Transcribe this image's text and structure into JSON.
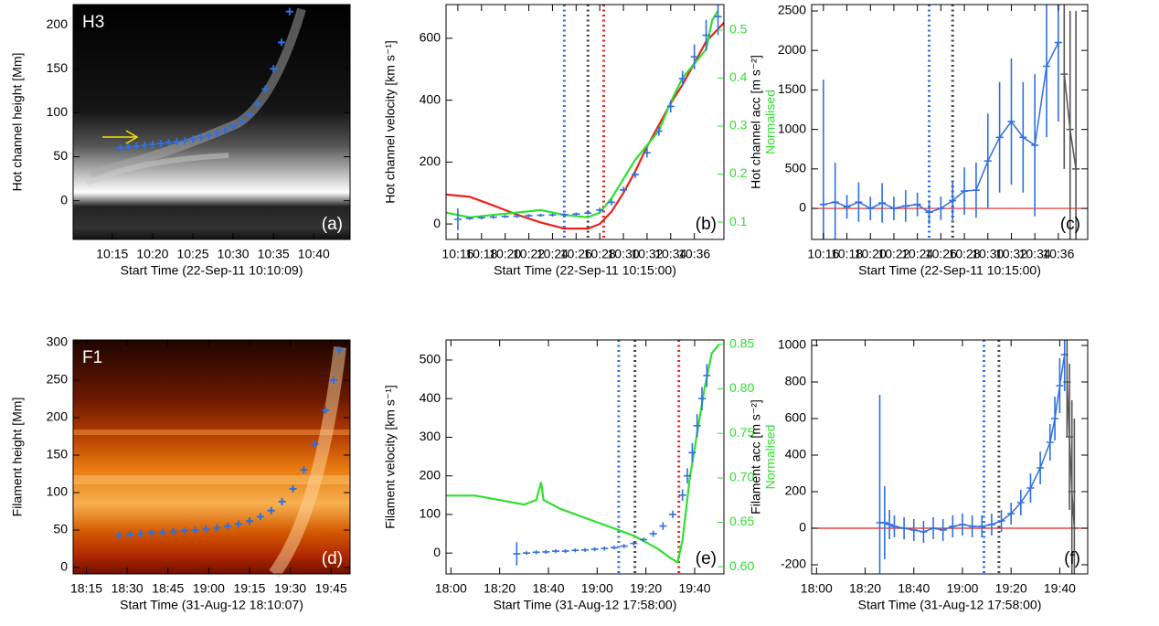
{
  "chart_data": [
    {
      "type": "scatter",
      "title": "H3",
      "panel": "(a)",
      "ylabel": "Hot channel height [Mm]",
      "xlabel": "Start Time (22-Sep-11 10:10:09)",
      "xlim": [
        "10:10:09",
        "10:44:30"
      ],
      "ylim": [
        -44,
        223
      ],
      "xticks": [
        "10:15",
        "10:20",
        "10:25",
        "10:30",
        "10:35",
        "10:40"
      ],
      "yticks": [
        0,
        50,
        100,
        150,
        200
      ],
      "series": [
        {
          "color": "#2f6fe0",
          "style": "cross",
          "x": [
            "10:16",
            "10:17",
            "10:18",
            "10:19",
            "10:20",
            "10:21",
            "10:22",
            "10:23",
            "10:24",
            "10:25",
            "10:26",
            "10:27",
            "10:28",
            "10:29",
            "10:30",
            "10:31",
            "10:32",
            "10:33",
            "10:34",
            "10:35",
            "10:36",
            "10:37"
          ],
          "values": [
            60,
            61,
            62,
            63,
            64,
            65,
            66,
            67,
            68,
            70,
            72,
            74,
            77,
            80,
            84,
            90,
            98,
            110,
            127,
            150,
            180,
            215
          ]
        }
      ]
    },
    {
      "type": "line",
      "panel": "(b)",
      "ylabel": "Hot channel velocity [km s⁻¹]",
      "y2label": "Normalised",
      "y2color": "#2ee02e",
      "xlabel": "Start Time (22-Sep-11 10:15:00)",
      "xlim": [
        "10:15:00",
        "10:38:30"
      ],
      "ylim": [
        -50,
        709
      ],
      "y2lim": [
        0.064,
        0.553
      ],
      "xticks": [
        "10:16",
        "10:18",
        "10:20",
        "10:22",
        "10:24",
        "10:26",
        "10:28",
        "10:30",
        "10:32",
        "10:34",
        "10:36"
      ],
      "yticks": [
        0,
        200,
        400,
        600
      ],
      "y2ticks": [
        0.1,
        0.2,
        0.3,
        0.4,
        0.5
      ],
      "vlines": [
        {
          "x": "10:25:00",
          "color": "#2f6fe0"
        },
        {
          "x": "10:27:00",
          "color": "#444444"
        },
        {
          "x": "10:28:20",
          "color": "#e8231b"
        }
      ],
      "series": [
        {
          "color": "#e8231b",
          "style": "line",
          "x": [
            "10:15",
            "10:17",
            "10:19",
            "10:21",
            "10:23",
            "10:25",
            "10:27",
            "10:28",
            "10:29",
            "10:30",
            "10:31",
            "10:32",
            "10:33",
            "10:34",
            "10:35",
            "10:36",
            "10:37",
            "10:38:30"
          ],
          "values": [
            95,
            88,
            60,
            30,
            5,
            -15,
            -15,
            0,
            40,
            100,
            170,
            250,
            320,
            390,
            450,
            520,
            590,
            650
          ]
        },
        {
          "color": "#2ee02e",
          "style": "line",
          "axis": "y2",
          "x": [
            "10:15",
            "10:17",
            "10:19",
            "10:21",
            "10:23",
            "10:25",
            "10:27",
            "10:28",
            "10:29",
            "10:30",
            "10:31",
            "10:32",
            "10:33",
            "10:34",
            "10:35",
            "10:36",
            "10:37",
            "10:37:30",
            "10:38"
          ],
          "values": [
            0.12,
            0.11,
            0.115,
            0.12,
            0.125,
            0.115,
            0.11,
            0.12,
            0.15,
            0.19,
            0.23,
            0.26,
            0.29,
            0.35,
            0.4,
            0.43,
            0.46,
            0.52,
            0.54
          ]
        },
        {
          "color": "#2f6fe0",
          "style": "errorbar",
          "x": [
            "10:16",
            "10:17",
            "10:18",
            "10:19",
            "10:20",
            "10:21",
            "10:22",
            "10:23",
            "10:24",
            "10:25",
            "10:26",
            "10:27",
            "10:28",
            "10:29",
            "10:30",
            "10:31",
            "10:32",
            "10:33",
            "10:34",
            "10:35",
            "10:36",
            "10:37",
            "10:38"
          ],
          "values": [
            15,
            18,
            20,
            22,
            24,
            25,
            27,
            28,
            29,
            30,
            32,
            35,
            45,
            70,
            110,
            160,
            230,
            300,
            380,
            470,
            540,
            610,
            670
          ],
          "errors": [
            35,
            5,
            5,
            5,
            5,
            5,
            5,
            5,
            5,
            5,
            5,
            5,
            8,
            10,
            10,
            12,
            15,
            15,
            20,
            25,
            40,
            50,
            60
          ]
        }
      ]
    },
    {
      "type": "line",
      "panel": "(c)",
      "ylabel": "Hot channel acc [m s⁻²]",
      "xlabel": "Start Time (22-Sep-11 10:15:00)",
      "xlim": [
        "10:15:00",
        "10:38:30"
      ],
      "ylim": [
        -393,
        2581
      ],
      "xticks": [
        "10:16",
        "10:18",
        "10:20",
        "10:22",
        "10:24",
        "10:26",
        "10:28",
        "10:30",
        "10:32",
        "10:34",
        "10:36"
      ],
      "yticks": [
        0,
        500,
        1000,
        1500,
        2000,
        2500
      ],
      "hline": {
        "value": 0,
        "color": "#e8231b"
      },
      "vlines": [
        {
          "x": "10:25:00",
          "color": "#2f6fe0"
        },
        {
          "x": "10:27:00",
          "color": "#444444"
        }
      ],
      "series": [
        {
          "color": "#2f6fe0",
          "style": "line+errorbar",
          "x": [
            "10:16",
            "10:17",
            "10:18",
            "10:19",
            "10:20",
            "10:21",
            "10:22",
            "10:23",
            "10:24",
            "10:25",
            "10:26",
            "10:27",
            "10:28",
            "10:29",
            "10:30",
            "10:31",
            "10:32",
            "10:33",
            "10:34",
            "10:35",
            "10:36"
          ],
          "values": [
            50,
            80,
            20,
            80,
            0,
            70,
            0,
            30,
            50,
            -50,
            0,
            100,
            220,
            230,
            600,
            900,
            1100,
            900,
            800,
            1800,
            2100
          ],
          "errors": [
            1580,
            500,
            150,
            250,
            150,
            250,
            150,
            200,
            150,
            150,
            150,
            250,
            300,
            350,
            600,
            700,
            800,
            700,
            900,
            900,
            1000
          ]
        },
        {
          "color": "#555555",
          "style": "line+errorbar",
          "x": [
            "10:36:30",
            "10:37",
            "10:37:30"
          ],
          "values": [
            1700,
            1000,
            500
          ],
          "errors": [
            1200,
            1500,
            2000
          ]
        }
      ]
    },
    {
      "type": "scatter",
      "title": "F1",
      "panel": "(d)",
      "ylabel": "Filament height [Mm]",
      "xlabel": "Start Time (31-Aug-12 18:10:07)",
      "xlim": [
        "18:10:07",
        "19:52:00"
      ],
      "ylim": [
        -8.5,
        303.7
      ],
      "xticks": [
        "18:15",
        "18:30",
        "18:45",
        "19:00",
        "19:15",
        "19:30",
        "19:45"
      ],
      "yticks": [
        0,
        50,
        100,
        150,
        200,
        250,
        300
      ],
      "series": [
        {
          "color": "#2f6fe0",
          "style": "cross",
          "x": [
            "18:27",
            "18:31",
            "18:35",
            "18:39",
            "18:43",
            "18:47",
            "18:51",
            "18:55",
            "18:59",
            "19:03",
            "19:07",
            "19:11",
            "19:15",
            "19:19",
            "19:23",
            "19:27",
            "19:31",
            "19:35",
            "19:39",
            "19:43",
            "19:46",
            "19:48"
          ],
          "values": [
            43,
            44,
            45,
            46,
            47,
            48,
            49,
            50,
            51,
            53,
            55,
            58,
            62,
            68,
            76,
            88,
            105,
            130,
            165,
            210,
            250,
            290
          ]
        }
      ]
    },
    {
      "type": "line",
      "panel": "(e)",
      "ylabel": "Filament velocity [km s⁻¹]",
      "y2label": "Normalised",
      "y2color": "#2ee02e",
      "xlabel": "Start Time (31-Aug-12 17:58:00)",
      "xlim": [
        "17:58:00",
        "19:52:00"
      ],
      "ylim": [
        -54,
        552
      ],
      "y2lim": [
        0.592,
        0.855
      ],
      "xticks": [
        "18:00",
        "18:20",
        "18:40",
        "19:00",
        "19:20",
        "19:40"
      ],
      "yticks": [
        0,
        100,
        200,
        300,
        400,
        500
      ],
      "y2ticks": [
        {
          "value": 0.6,
          "label": "0.60"
        },
        0.65,
        {
          "value": 0.7,
          "label": "0.70"
        },
        0.75,
        {
          "value": 0.8,
          "label": "0.80"
        },
        0.85
      ],
      "vlines": [
        {
          "x": "19:08:50",
          "color": "#2f6fe0"
        },
        {
          "x": "19:15:30",
          "color": "#444444"
        },
        {
          "x": "19:33:30",
          "color": "#e8231b"
        }
      ],
      "series": [
        {
          "color": "#2ee02e",
          "style": "line",
          "axis": "y2",
          "x": [
            "17:58",
            "18:10",
            "18:20",
            "18:30",
            "18:35",
            "18:37",
            "18:38",
            "18:45",
            "18:55",
            "19:05",
            "19:15",
            "19:25",
            "19:30",
            "19:33",
            "19:35",
            "19:38",
            "19:41",
            "19:44",
            "19:47",
            "19:50"
          ],
          "values": [
            0.68,
            0.68,
            0.675,
            0.67,
            0.675,
            0.695,
            0.675,
            0.665,
            0.655,
            0.645,
            0.635,
            0.62,
            0.61,
            0.605,
            0.63,
            0.7,
            0.75,
            0.8,
            0.84,
            0.85
          ]
        },
        {
          "color": "#2f6fe0",
          "style": "errorbar",
          "x": [
            "18:27",
            "18:31",
            "18:35",
            "18:39",
            "18:43",
            "18:47",
            "18:51",
            "18:55",
            "18:59",
            "19:03",
            "19:07",
            "19:11",
            "19:15",
            "19:19",
            "19:23",
            "19:27",
            "19:31",
            "19:35",
            "19:37",
            "19:39",
            "19:41",
            "19:43",
            "19:45"
          ],
          "values": [
            -2,
            0,
            2,
            3,
            5,
            5,
            7,
            8,
            10,
            12,
            14,
            18,
            25,
            35,
            50,
            70,
            100,
            150,
            200,
            260,
            330,
            400,
            460
          ],
          "errors": [
            30,
            5,
            5,
            5,
            5,
            5,
            5,
            5,
            5,
            5,
            5,
            5,
            5,
            5,
            8,
            10,
            10,
            15,
            20,
            25,
            30,
            30,
            30
          ]
        }
      ]
    },
    {
      "type": "line",
      "panel": "(f)",
      "ylabel": "Filament acc [m s⁻²]",
      "xlabel": "Start Time (31-Aug-12 17:58:00)",
      "xlim": [
        "17:58:00",
        "19:51:30"
      ],
      "ylim": [
        -250,
        1030
      ],
      "xticks": [
        "18:00",
        "18:20",
        "18:40",
        "19:00",
        "19:20",
        "19:40"
      ],
      "yticks": [
        -200,
        0,
        200,
        400,
        600,
        800,
        1000
      ],
      "hline": {
        "value": 0,
        "color": "#e8231b"
      },
      "vlines": [
        {
          "x": "19:08:50",
          "color": "#2f6fe0"
        },
        {
          "x": "19:15:00",
          "color": "#444444"
        }
      ],
      "series": [
        {
          "color": "#2f6fe0",
          "style": "line+errorbar",
          "x": [
            "18:26",
            "18:28",
            "18:30",
            "18:32",
            "18:36",
            "18:40",
            "18:44",
            "18:48",
            "18:52",
            "18:56",
            "19:00",
            "19:04",
            "19:08",
            "19:12",
            "19:16",
            "19:20",
            "19:24",
            "19:28",
            "19:32",
            "19:36",
            "19:38",
            "19:40",
            "19:42"
          ],
          "values": [
            30,
            30,
            20,
            10,
            0,
            -10,
            -20,
            0,
            -10,
            10,
            20,
            10,
            10,
            20,
            40,
            80,
            140,
            220,
            330,
            470,
            600,
            780,
            950
          ],
          "errors": [
            700,
            200,
            80,
            60,
            60,
            60,
            60,
            60,
            60,
            60,
            60,
            60,
            60,
            60,
            60,
            60,
            70,
            80,
            90,
            100,
            120,
            150,
            200
          ]
        },
        {
          "color": "#555555",
          "style": "line+errorbar",
          "x": [
            "19:43",
            "19:44",
            "19:45",
            "19:46"
          ],
          "values": [
            800,
            500,
            200,
            0
          ],
          "errors": [
            300,
            400,
            500,
            600
          ]
        }
      ]
    }
  ]
}
